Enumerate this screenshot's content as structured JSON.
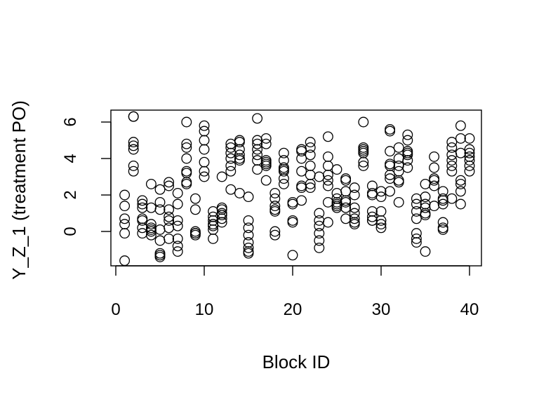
{
  "chart_data": {
    "type": "scatter",
    "title": "",
    "xlabel": "Block ID",
    "ylabel": "Y_Z_1 (treatment PO)",
    "xlim": [
      0,
      40
    ],
    "ylim": [
      -1.6,
      6.5
    ],
    "xticks": [
      "0",
      "10",
      "20",
      "30",
      "40"
    ],
    "yticks": [
      "0",
      "2",
      "4",
      "6"
    ],
    "grid": false,
    "points": [
      [
        1,
        -1.6
      ],
      [
        1,
        2.0
      ],
      [
        1,
        1.4
      ],
      [
        1,
        0.7
      ],
      [
        1,
        0.4
      ],
      [
        1,
        -0.1
      ],
      [
        2,
        6.3
      ],
      [
        2,
        6.3
      ],
      [
        2,
        4.9
      ],
      [
        2,
        4.7
      ],
      [
        2,
        4.5
      ],
      [
        2,
        3.6
      ],
      [
        2,
        3.3
      ],
      [
        3,
        1.7
      ],
      [
        3,
        1.5
      ],
      [
        3,
        1.3
      ],
      [
        3,
        0.7
      ],
      [
        3,
        0.6
      ],
      [
        3,
        0.2
      ],
      [
        3,
        -0.1
      ],
      [
        4,
        2.6
      ],
      [
        4,
        1.3
      ],
      [
        4,
        0.4
      ],
      [
        4,
        0.2
      ],
      [
        4,
        0.1
      ],
      [
        4,
        0.0
      ],
      [
        4,
        -0.2
      ],
      [
        5,
        2.3
      ],
      [
        5,
        1.6
      ],
      [
        5,
        1.2
      ],
      [
        5,
        0.1
      ],
      [
        5,
        -1.2
      ],
      [
        5,
        -1.3
      ],
      [
        5,
        -1.4
      ],
      [
        5,
        -0.5
      ],
      [
        6,
        2.7
      ],
      [
        6,
        2.5
      ],
      [
        6,
        1.2
      ],
      [
        6,
        0.8
      ],
      [
        6,
        0.6
      ],
      [
        6,
        0.2
      ],
      [
        6,
        -0.4
      ],
      [
        7,
        2.1
      ],
      [
        7,
        1.5
      ],
      [
        7,
        0.6
      ],
      [
        7,
        0.3
      ],
      [
        7,
        -0.4
      ],
      [
        7,
        -0.8
      ],
      [
        7,
        -1.1
      ],
      [
        8,
        6.0
      ],
      [
        8,
        4.8
      ],
      [
        8,
        4.6
      ],
      [
        8,
        4.0
      ],
      [
        8,
        3.3
      ],
      [
        8,
        3.2
      ],
      [
        8,
        2.7
      ],
      [
        8,
        2.6
      ],
      [
        9,
        1.8
      ],
      [
        9,
        1.2
      ],
      [
        9,
        0.0
      ],
      [
        9,
        -0.1
      ],
      [
        9,
        -0.1
      ],
      [
        9,
        -0.2
      ],
      [
        10,
        5.8
      ],
      [
        10,
        5.5
      ],
      [
        10,
        5.0
      ],
      [
        10,
        4.5
      ],
      [
        10,
        3.8
      ],
      [
        10,
        3.3
      ],
      [
        10,
        3.0
      ],
      [
        11,
        1.1
      ],
      [
        11,
        0.8
      ],
      [
        11,
        0.6
      ],
      [
        11,
        0.4
      ],
      [
        11,
        0.3
      ],
      [
        11,
        0.1
      ],
      [
        11,
        -0.4
      ],
      [
        12,
        3.0
      ],
      [
        12,
        1.3
      ],
      [
        12,
        1.2
      ],
      [
        12,
        1.0
      ],
      [
        12,
        0.9
      ],
      [
        12,
        0.7
      ],
      [
        12,
        0.5
      ],
      [
        13,
        4.8
      ],
      [
        13,
        4.6
      ],
      [
        13,
        4.3
      ],
      [
        13,
        4.0
      ],
      [
        13,
        3.6
      ],
      [
        13,
        3.3
      ],
      [
        13,
        2.3
      ],
      [
        14,
        5.0
      ],
      [
        14,
        4.9
      ],
      [
        14,
        4.5
      ],
      [
        14,
        4.2
      ],
      [
        14,
        4.0
      ],
      [
        14,
        3.9
      ],
      [
        14,
        2.1
      ],
      [
        15,
        1.9
      ],
      [
        15,
        0.6
      ],
      [
        15,
        0.2
      ],
      [
        15,
        -0.2
      ],
      [
        15,
        -0.6
      ],
      [
        15,
        -0.9
      ],
      [
        15,
        -1.1
      ],
      [
        15,
        -1.2
      ],
      [
        16,
        6.2
      ],
      [
        16,
        5.0
      ],
      [
        16,
        4.8
      ],
      [
        16,
        4.5
      ],
      [
        16,
        4.2
      ],
      [
        16,
        3.9
      ],
      [
        16,
        3.4
      ],
      [
        17,
        5.1
      ],
      [
        17,
        4.8
      ],
      [
        17,
        3.9
      ],
      [
        17,
        3.8
      ],
      [
        17,
        3.7
      ],
      [
        17,
        3.6
      ],
      [
        17,
        2.8
      ],
      [
        18,
        2.1
      ],
      [
        18,
        1.8
      ],
      [
        18,
        1.4
      ],
      [
        18,
        1.2
      ],
      [
        18,
        1.1
      ],
      [
        18,
        0.0
      ],
      [
        18,
        -0.2
      ],
      [
        19,
        4.3
      ],
      [
        19,
        3.9
      ],
      [
        19,
        3.5
      ],
      [
        19,
        3.4
      ],
      [
        19,
        3.3
      ],
      [
        19,
        2.9
      ],
      [
        19,
        2.6
      ],
      [
        20,
        1.6
      ],
      [
        20,
        1.5
      ],
      [
        20,
        0.6
      ],
      [
        20,
        0.5
      ],
      [
        20,
        -1.3
      ],
      [
        21,
        4.5
      ],
      [
        21,
        4.4
      ],
      [
        21,
        4.0
      ],
      [
        21,
        3.3
      ],
      [
        21,
        2.5
      ],
      [
        21,
        2.4
      ],
      [
        21,
        1.7
      ],
      [
        22,
        4.9
      ],
      [
        22,
        4.6
      ],
      [
        22,
        4.2
      ],
      [
        22,
        3.6
      ],
      [
        22,
        3.1
      ],
      [
        22,
        2.6
      ],
      [
        22,
        2.4
      ],
      [
        23,
        3.0
      ],
      [
        23,
        1.0
      ],
      [
        23,
        0.6
      ],
      [
        23,
        0.3
      ],
      [
        23,
        -0.1
      ],
      [
        23,
        -0.5
      ],
      [
        23,
        -0.9
      ],
      [
        24,
        5.2
      ],
      [
        24,
        4.1
      ],
      [
        24,
        3.6
      ],
      [
        24,
        3.1
      ],
      [
        24,
        2.8
      ],
      [
        24,
        2.5
      ],
      [
        24,
        1.6
      ],
      [
        24,
        0.5
      ],
      [
        25,
        3.4
      ],
      [
        25,
        2.1
      ],
      [
        25,
        1.8
      ],
      [
        25,
        1.6
      ],
      [
        25,
        1.5
      ],
      [
        25,
        1.4
      ],
      [
        25,
        1.3
      ],
      [
        26,
        2.9
      ],
      [
        26,
        2.8
      ],
      [
        26,
        2.2
      ],
      [
        26,
        1.7
      ],
      [
        26,
        1.6
      ],
      [
        26,
        1.3
      ],
      [
        26,
        0.7
      ],
      [
        27,
        2.4
      ],
      [
        27,
        2.0
      ],
      [
        27,
        1.3
      ],
      [
        27,
        1.0
      ],
      [
        27,
        0.7
      ],
      [
        27,
        0.5
      ],
      [
        27,
        0.4
      ],
      [
        28,
        6.0
      ],
      [
        28,
        4.6
      ],
      [
        28,
        4.5
      ],
      [
        28,
        4.4
      ],
      [
        28,
        4.3
      ],
      [
        28,
        3.8
      ],
      [
        28,
        3.6
      ],
      [
        29,
        2.5
      ],
      [
        29,
        2.1
      ],
      [
        29,
        2.0
      ],
      [
        29,
        1.1
      ],
      [
        29,
        0.8
      ],
      [
        29,
        0.6
      ],
      [
        29,
        0.6
      ],
      [
        30,
        2.2
      ],
      [
        30,
        1.9
      ],
      [
        30,
        1.1
      ],
      [
        30,
        0.6
      ],
      [
        30,
        0.4
      ],
      [
        30,
        0.2
      ],
      [
        31,
        5.6
      ],
      [
        31,
        5.5
      ],
      [
        31,
        4.4
      ],
      [
        31,
        3.7
      ],
      [
        31,
        3.6
      ],
      [
        31,
        3.1
      ],
      [
        31,
        2.9
      ],
      [
        31,
        2.2
      ],
      [
        32,
        4.6
      ],
      [
        32,
        4.0
      ],
      [
        32,
        3.6
      ],
      [
        32,
        3.3
      ],
      [
        32,
        2.8
      ],
      [
        32,
        2.7
      ],
      [
        32,
        1.6
      ],
      [
        33,
        5.3
      ],
      [
        33,
        5.0
      ],
      [
        33,
        4.4
      ],
      [
        33,
        4.3
      ],
      [
        33,
        4.2
      ],
      [
        33,
        3.9
      ],
      [
        33,
        3.5
      ],
      [
        34,
        1.8
      ],
      [
        34,
        1.5
      ],
      [
        34,
        1.1
      ],
      [
        34,
        0.7
      ],
      [
        34,
        -0.1
      ],
      [
        34,
        -0.4
      ],
      [
        34,
        -0.6
      ],
      [
        35,
        2.6
      ],
      [
        35,
        1.9
      ],
      [
        35,
        1.5
      ],
      [
        35,
        1.3
      ],
      [
        35,
        1.0
      ],
      [
        35,
        0.9
      ],
      [
        35,
        -1.1
      ],
      [
        36,
        4.1
      ],
      [
        36,
        3.5
      ],
      [
        36,
        2.9
      ],
      [
        36,
        2.8
      ],
      [
        36,
        2.5
      ],
      [
        36,
        1.4
      ],
      [
        37,
        2.2
      ],
      [
        37,
        1.8
      ],
      [
        37,
        1.7
      ],
      [
        37,
        1.5
      ],
      [
        37,
        0.5
      ],
      [
        37,
        0.2
      ],
      [
        37,
        0.1
      ],
      [
        38,
        4.9
      ],
      [
        38,
        4.6
      ],
      [
        38,
        4.2
      ],
      [
        38,
        3.9
      ],
      [
        38,
        3.6
      ],
      [
        38,
        3.3
      ],
      [
        38,
        1.8
      ],
      [
        39,
        5.8
      ],
      [
        39,
        5.1
      ],
      [
        39,
        4.3
      ],
      [
        39,
        2.8
      ],
      [
        39,
        2.6
      ],
      [
        39,
        2.2
      ],
      [
        39,
        1.5
      ],
      [
        40,
        5.1
      ],
      [
        40,
        4.5
      ],
      [
        40,
        4.3
      ],
      [
        40,
        4.1
      ],
      [
        40,
        3.9
      ],
      [
        40,
        3.6
      ],
      [
        40,
        3.3
      ]
    ]
  }
}
